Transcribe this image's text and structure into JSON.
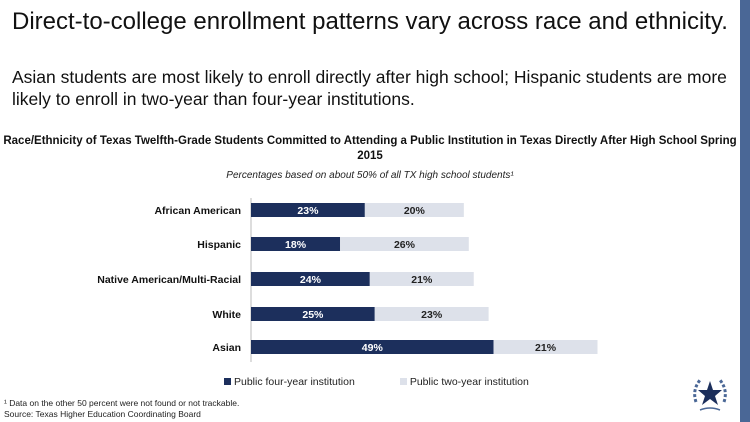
{
  "title": "Direct-to-college enrollment patterns vary across race and ethnicity.",
  "subtitle": "Asian students are most likely to enroll directly after high school; Hispanic students are more likely to enroll in two-year than four-year institutions.",
  "chart_data": {
    "type": "bar",
    "orientation": "horizontal-stacked",
    "title": "Race/Ethnicity of Texas Twelfth-Grade Students Committed to Attending a Public Institution in Texas Directly After High School Spring 2015",
    "note": "Percentages based on about 50% of all TX high school students¹",
    "categories": [
      "African American",
      "Hispanic",
      "Native American/Multi-Racial",
      "White",
      "Asian"
    ],
    "series": [
      {
        "name": "Public four-year institution",
        "color": "#1c2f5c",
        "values": [
          23,
          18,
          24,
          25,
          49
        ]
      },
      {
        "name": "Public two-year institution",
        "color": "#dde1ea",
        "values": [
          20,
          26,
          21,
          23,
          21
        ]
      }
    ],
    "legend": "bottom"
  },
  "footnote": "¹ Data on the other 50 percent were not found or not trackable.",
  "source": "Source: Texas Higher Education Coordinating Board"
}
